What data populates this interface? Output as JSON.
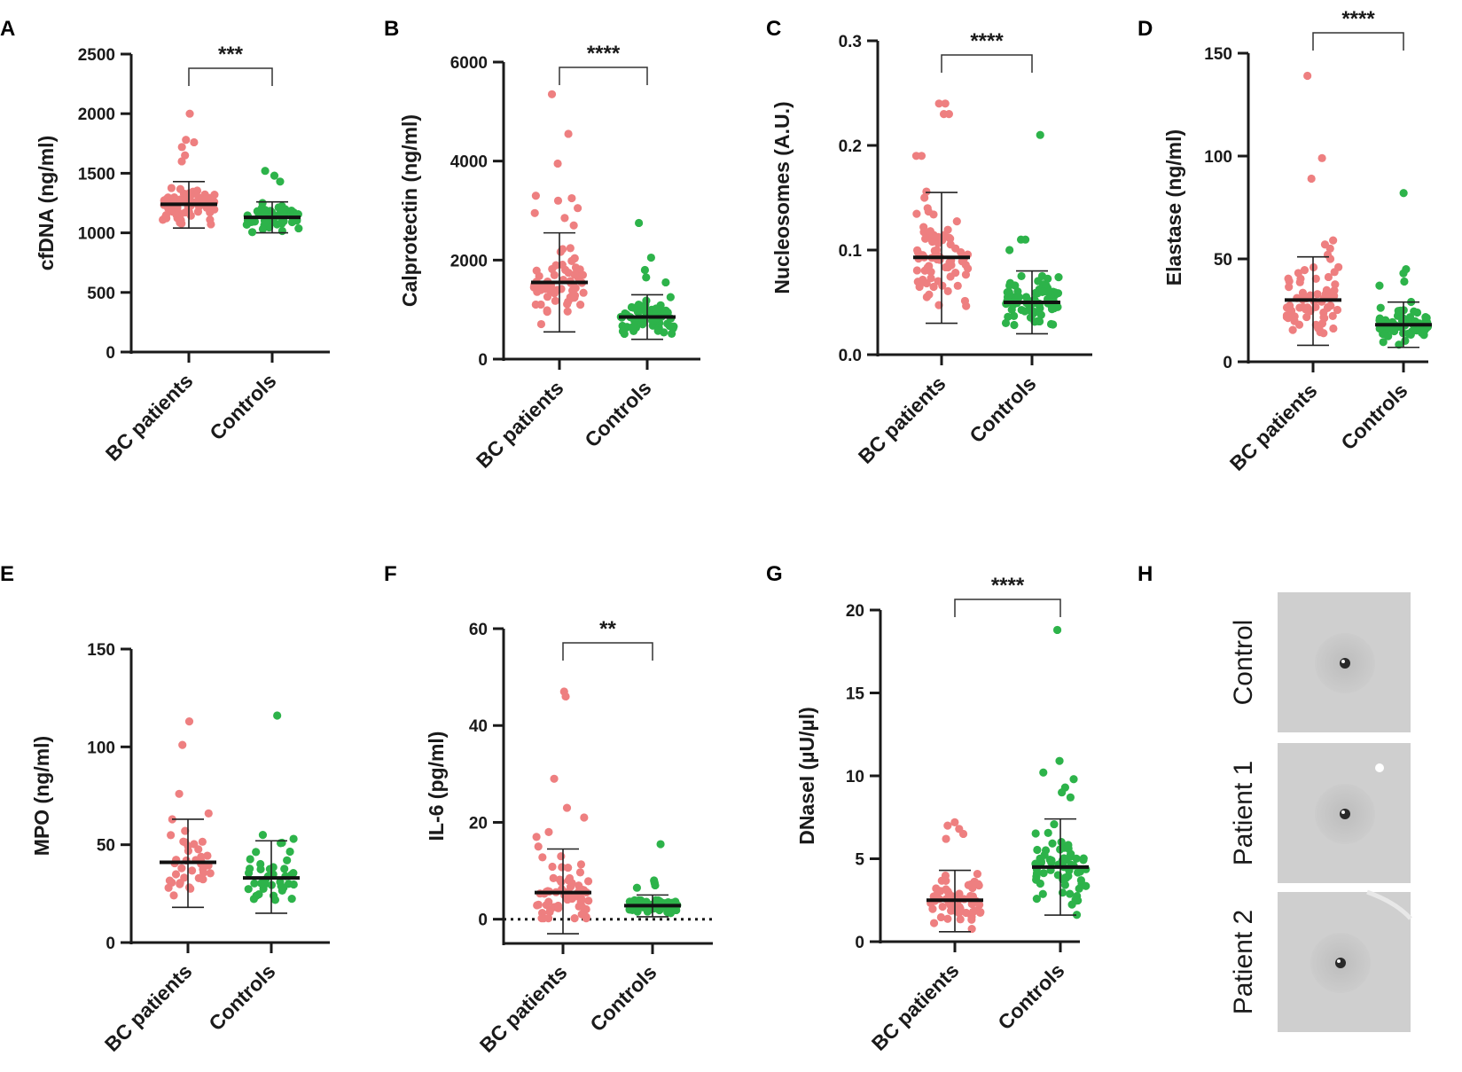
{
  "figure": {
    "colors": {
      "patients": "#ee7f80",
      "controls": "#2db34a",
      "axis": "#1a1a1a",
      "photo_bg": "#cfcfcf"
    },
    "panel_h": {
      "letter": "H",
      "labels": [
        "Control",
        "Patient 1",
        "Patient 2"
      ]
    }
  },
  "chart_data": [
    {
      "letter": "A",
      "type": "scatter",
      "ylabel": "cfDNA (ng/ml)",
      "categories": [
        "BC patients",
        "Controls"
      ],
      "ylim": [
        0,
        2500
      ],
      "yticks": [
        0,
        500,
        1000,
        1500,
        2000,
        2500
      ],
      "tick_labels": [
        "0",
        "500",
        "1000",
        "1500",
        "2000",
        "2500"
      ],
      "significance": "***",
      "series": [
        {
          "name": "BC patients",
          "mean": 1240,
          "sd_low": 1040,
          "sd_high": 1430,
          "n": 70,
          "min": 950,
          "max": 2000,
          "extras": [
            2000,
            1780,
            1760,
            1720,
            1650,
            1600
          ],
          "spread": 30
        },
        {
          "name": "Controls",
          "mean": 1130,
          "sd_low": 1000,
          "sd_high": 1260,
          "n": 70,
          "min": 920,
          "max": 1520,
          "extras": [
            1520,
            1480,
            1430
          ],
          "spread": 30
        }
      ]
    },
    {
      "letter": "B",
      "type": "scatter",
      "ylabel": "Calprotectin (ng/ml)",
      "categories": [
        "BC patients",
        "Controls"
      ],
      "ylim": [
        0,
        6000
      ],
      "yticks": [
        0,
        2000,
        4000,
        6000
      ],
      "tick_labels": [
        "0",
        "2000",
        "4000",
        "6000"
      ],
      "significance": "****",
      "series": [
        {
          "name": "BC patients",
          "mean": 1550,
          "sd_low": 550,
          "sd_high": 2550,
          "n": 70,
          "min": 280,
          "max": 5350,
          "extras": [
            5350,
            4550,
            3950,
            3300,
            3250,
            3200,
            3050,
            2950,
            2850,
            2700
          ],
          "spread": 32
        },
        {
          "name": "Controls",
          "mean": 850,
          "sd_low": 400,
          "sd_high": 1300,
          "n": 70,
          "min": 200,
          "max": 2750,
          "extras": [
            2750,
            2050,
            1800,
            1650,
            1550
          ],
          "spread": 30
        }
      ]
    },
    {
      "letter": "C",
      "type": "scatter",
      "ylabel": "Nucleosomes (A.U.)",
      "categories": [
        "BC patients",
        "Controls"
      ],
      "ylim": [
        0,
        0.3
      ],
      "yticks": [
        0,
        0.1,
        0.2,
        0.3
      ],
      "tick_labels": [
        "0.0",
        "0.1",
        "0.2",
        "0.3"
      ],
      "significance": "****",
      "series": [
        {
          "name": "BC patients",
          "mean": 0.093,
          "sd_low": 0.03,
          "sd_high": 0.155,
          "n": 80,
          "min": 0.02,
          "max": 0.24,
          "extras": [
            0.24,
            0.24,
            0.23,
            0.23,
            0.19,
            0.19,
            0.15,
            0.14
          ],
          "spread": 30
        },
        {
          "name": "Controls",
          "mean": 0.05,
          "sd_low": 0.02,
          "sd_high": 0.08,
          "n": 80,
          "min": 0.01,
          "max": 0.21,
          "extras": [
            0.21,
            0.11,
            0.11,
            0.1
          ],
          "spread": 30
        }
      ]
    },
    {
      "letter": "D",
      "type": "scatter",
      "ylabel": "Elastase (ng/ml)",
      "categories": [
        "BC patients",
        "Controls"
      ],
      "ylim": [
        0,
        150
      ],
      "yticks": [
        0,
        50,
        100,
        150
      ],
      "tick_labels": [
        "0",
        "50",
        "100",
        "150"
      ],
      "significance": "****",
      "series": [
        {
          "name": "BC patients",
          "mean": 30,
          "sd_low": 8,
          "sd_high": 51,
          "n": 70,
          "min": 8,
          "max": 139,
          "extras": [
            139,
            99,
            89,
            59,
            57,
            55,
            52,
            50
          ],
          "spread": 30
        },
        {
          "name": "Controls",
          "mean": 18,
          "sd_low": 7,
          "sd_high": 29,
          "n": 70,
          "min": 6,
          "max": 82,
          "extras": [
            82,
            45,
            43,
            39,
            37
          ],
          "spread": 28
        }
      ]
    },
    {
      "letter": "E",
      "type": "scatter",
      "ylabel": "MPO (ng/ml)",
      "categories": [
        "BC patients",
        "Controls"
      ],
      "ylim": [
        0,
        150
      ],
      "yticks": [
        0,
        50,
        100,
        150
      ],
      "tick_labels": [
        "0",
        "50",
        "100",
        "150"
      ],
      "significance": "",
      "series": [
        {
          "name": "BC patients",
          "mean": 41,
          "sd_low": 18,
          "sd_high": 63,
          "n": 40,
          "min": 16,
          "max": 113,
          "extras": [
            113,
            101,
            76,
            66,
            63
          ],
          "spread": 26
        },
        {
          "name": "Controls",
          "mean": 33,
          "sd_low": 15,
          "sd_high": 52,
          "n": 40,
          "min": 10,
          "max": 116,
          "extras": [
            116,
            55,
            53,
            51
          ],
          "spread": 26
        }
      ]
    },
    {
      "letter": "F",
      "type": "scatter",
      "ylabel": "IL-6 (pg/ml)",
      "categories": [
        "BC patients",
        "Controls"
      ],
      "ylim": [
        -5,
        60
      ],
      "yticks": [
        0,
        20,
        40,
        60
      ],
      "tick_labels": [
        "0",
        "20",
        "40",
        "60"
      ],
      "significance": "**",
      "zero_line": true,
      "series": [
        {
          "name": "BC patients",
          "mean": 5.5,
          "sd_low": -3,
          "sd_high": 14.5,
          "n": 70,
          "min": 0.2,
          "max": 47,
          "extras": [
            47,
            46,
            29,
            23,
            21,
            18,
            17,
            15,
            13
          ],
          "spread": 30
        },
        {
          "name": "Controls",
          "mean": 2.8,
          "sd_low": 0.5,
          "sd_high": 5,
          "n": 70,
          "min": 0.1,
          "max": 15.5,
          "extras": [
            15.5,
            8,
            7.5,
            7,
            6.5
          ],
          "spread": 28
        }
      ]
    },
    {
      "letter": "G",
      "type": "scatter",
      "ylabel": "DNaseI (µU/µl)",
      "categories": [
        "BC patients",
        "Controls"
      ],
      "ylim": [
        0,
        20
      ],
      "yticks": [
        0,
        5,
        10,
        15,
        20
      ],
      "tick_labels": [
        "0",
        "5",
        "10",
        "15",
        "20"
      ],
      "significance": "****",
      "series": [
        {
          "name": "BC patients",
          "mean": 2.5,
          "sd_low": 0.6,
          "sd_high": 4.3,
          "n": 70,
          "min": 0.0,
          "max": 7.2,
          "extras": [
            7.2,
            7.0,
            6.8,
            6.5,
            6.2
          ],
          "spread": 30
        },
        {
          "name": "Controls",
          "mean": 4.5,
          "sd_low": 1.6,
          "sd_high": 7.4,
          "n": 70,
          "min": 0.8,
          "max": 18.8,
          "extras": [
            18.8,
            10.9,
            10.2,
            9.8,
            9.3,
            9.0,
            8.7
          ],
          "spread": 30
        }
      ]
    }
  ]
}
